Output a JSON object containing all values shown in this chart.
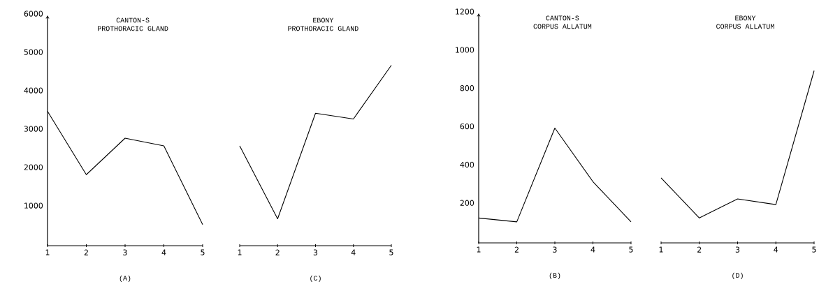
{
  "chart_data": [
    {
      "type": "line",
      "title": "CANTON-S",
      "subtitle": "PROTHORACIC GLAND",
      "xlabel": "(A)",
      "categories": [
        "1",
        "2",
        "3",
        "4",
        "5"
      ],
      "values": [
        3500,
        1850,
        2800,
        2600,
        550
      ],
      "color": "#000000",
      "ylim": [
        0,
        6000
      ],
      "yticks": [
        1000,
        2000,
        3000,
        4000,
        5000,
        6000
      ]
    },
    {
      "type": "line",
      "title": "EBONY",
      "subtitle": "PROTHORACIC GLAND",
      "xlabel": "(C)",
      "categories": [
        "1",
        "2",
        "3",
        "4",
        "5"
      ],
      "values": [
        2600,
        700,
        3450,
        3300,
        4700
      ],
      "color": "#000000",
      "ylim": [
        0,
        6000
      ],
      "tick_labels": "x"
    },
    {
      "type": "line",
      "title": "CANTON-S",
      "subtitle": "CORPUS ALLATUM",
      "xlabel": "(B)",
      "categories": [
        "1",
        "2",
        "3",
        "4",
        "5"
      ],
      "values": [
        130,
        110,
        600,
        320,
        110
      ],
      "color": "#000000",
      "ylim": [
        0,
        1200
      ],
      "yticks": [
        200,
        400,
        600,
        800,
        1000,
        1200
      ]
    },
    {
      "type": "line",
      "title": "EBONY",
      "subtitle": "CORPUS ALLATUM",
      "xlabel": "(D)",
      "categories": [
        "1",
        "2",
        "3",
        "4",
        "5"
      ],
      "values": [
        340,
        130,
        230,
        200,
        900
      ],
      "color": "#000000",
      "ylim": [
        0,
        1200
      ],
      "tick_labels": "x"
    }
  ]
}
